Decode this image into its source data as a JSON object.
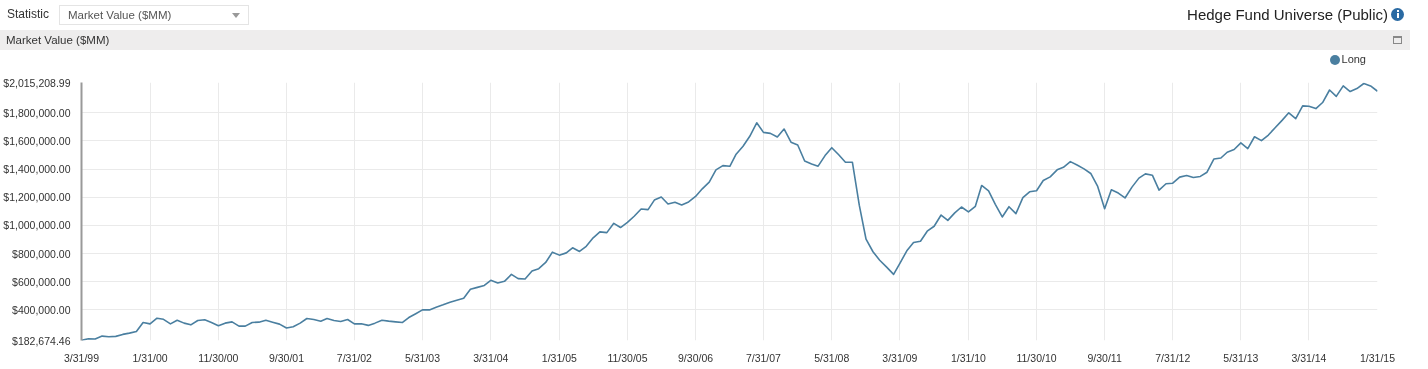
{
  "chart_data": {
    "type": "line",
    "title": "Hedge Fund Universe (Public)",
    "subtitle": "Market Value ($MM)",
    "annotations": [
      "Statistic",
      "Market Value ($MM)"
    ],
    "x": [
      "1999-03",
      "1999-04",
      "1999-05",
      "1999-06",
      "1999-07",
      "1999-08",
      "1999-09",
      "1999-10",
      "1999-11",
      "1999-12",
      "2000-01",
      "2000-02",
      "2000-03",
      "2000-04",
      "2000-05",
      "2000-06",
      "2000-07",
      "2000-08",
      "2000-09",
      "2000-10",
      "2000-11",
      "2000-12",
      "2001-01",
      "2001-02",
      "2001-03",
      "2001-04",
      "2001-05",
      "2001-06",
      "2001-07",
      "2001-08",
      "2001-09",
      "2001-10",
      "2001-11",
      "2001-12",
      "2002-01",
      "2002-02",
      "2002-03",
      "2002-04",
      "2002-05",
      "2002-06",
      "2002-07",
      "2002-08",
      "2002-09",
      "2002-10",
      "2002-11",
      "2002-12",
      "2003-01",
      "2003-02",
      "2003-03",
      "2003-04",
      "2003-05",
      "2003-06",
      "2003-07",
      "2003-08",
      "2003-09",
      "2003-10",
      "2003-11",
      "2003-12",
      "2004-01",
      "2004-02",
      "2004-03",
      "2004-04",
      "2004-05",
      "2004-06",
      "2004-07",
      "2004-08",
      "2004-09",
      "2004-10",
      "2004-11",
      "2004-12",
      "2005-01",
      "2005-02",
      "2005-03",
      "2005-04",
      "2005-05",
      "2005-06",
      "2005-07",
      "2005-08",
      "2005-09",
      "2005-10",
      "2005-11",
      "2005-12",
      "2006-01",
      "2006-02",
      "2006-03",
      "2006-04",
      "2006-05",
      "2006-06",
      "2006-07",
      "2006-08",
      "2006-09",
      "2006-10",
      "2006-11",
      "2006-12",
      "2007-01",
      "2007-02",
      "2007-03",
      "2007-04",
      "2007-05",
      "2007-06",
      "2007-07",
      "2007-08",
      "2007-09",
      "2007-10",
      "2007-11",
      "2007-12",
      "2008-01",
      "2008-02",
      "2008-03",
      "2008-04",
      "2008-05",
      "2008-06",
      "2008-07",
      "2008-08",
      "2008-09",
      "2008-10",
      "2008-11",
      "2008-12",
      "2009-01",
      "2009-02",
      "2009-03",
      "2009-04",
      "2009-05",
      "2009-06",
      "2009-07",
      "2009-08",
      "2009-09",
      "2009-10",
      "2009-11",
      "2009-12",
      "2010-01",
      "2010-02",
      "2010-03",
      "2010-04",
      "2010-05",
      "2010-06",
      "2010-07",
      "2010-08",
      "2010-09",
      "2010-10",
      "2010-11",
      "2010-12",
      "2011-01",
      "2011-02",
      "2011-03",
      "2011-04",
      "2011-05",
      "2011-06",
      "2011-07",
      "2011-08",
      "2011-09",
      "2011-10",
      "2011-11",
      "2011-12",
      "2012-01",
      "2012-02",
      "2012-03",
      "2012-04",
      "2012-05",
      "2012-06",
      "2012-07",
      "2012-08",
      "2012-09",
      "2012-10",
      "2012-11",
      "2012-12",
      "2013-01",
      "2013-02",
      "2013-03",
      "2013-04",
      "2013-05",
      "2013-06",
      "2013-07",
      "2013-08",
      "2013-09",
      "2013-10",
      "2013-11",
      "2013-12",
      "2014-01",
      "2014-02",
      "2014-03",
      "2014-04",
      "2014-05",
      "2014-06",
      "2014-07",
      "2014-08",
      "2014-09",
      "2014-10",
      "2014-11",
      "2014-12",
      "2015-01"
    ],
    "series": [
      {
        "name": "Long",
        "color": "#4a7fa0",
        "values": [
          184000,
          195000,
          193000,
          214000,
          209000,
          212000,
          226000,
          235000,
          247000,
          311000,
          301000,
          341000,
          333000,
          301000,
          327000,
          306000,
          294000,
          325000,
          330000,
          311000,
          287000,
          306000,
          315000,
          285000,
          285000,
          311000,
          313000,
          327000,
          313000,
          299000,
          271000,
          280000,
          306000,
          339000,
          332000,
          320000,
          339000,
          325000,
          318000,
          332000,
          301000,
          301000,
          290000,
          306000,
          327000,
          320000,
          315000,
          311000,
          346000,
          373000,
          400000,
          400000,
          419000,
          436000,
          455000,
          469000,
          483000,
          546000,
          560000,
          574000,
          610000,
          591000,
          603000,
          652000,
          622000,
          620000,
          676000,
          693000,
          737000,
          810000,
          789000,
          805000,
          841000,
          815000,
          852000,
          912000,
          954000,
          949000,
          1015000,
          985000,
          1022000,
          1065000,
          1117000,
          1112000,
          1180000,
          1202000,
          1152000,
          1164000,
          1145000,
          1167000,
          1206000,
          1260000,
          1308000,
          1395000,
          1425000,
          1420000,
          1506000,
          1562000,
          1633000,
          1729000,
          1661000,
          1654000,
          1628000,
          1685000,
          1591000,
          1571000,
          1458000,
          1437000,
          1421000,
          1496000,
          1552000,
          1502000,
          1449000,
          1449000,
          1142000,
          902000,
          813000,
          753000,
          704000,
          652000,
          730000,
          820000,
          879000,
          888000,
          959000,
          994000,
          1074000,
          1036000,
          1089000,
          1131000,
          1096000,
          1136000,
          1284000,
          1246000,
          1150000,
          1060000,
          1133000,
          1084000,
          1197000,
          1239000,
          1246000,
          1319000,
          1345000,
          1395000,
          1413000,
          1453000,
          1429000,
          1402000,
          1369000,
          1277000,
          1119000,
          1253000,
          1230000,
          1195000,
          1272000,
          1336000,
          1366000,
          1357000,
          1251000,
          1296000,
          1300000,
          1343000,
          1355000,
          1340000,
          1348000,
          1378000,
          1472000,
          1479000,
          1520000,
          1539000,
          1586000,
          1546000,
          1630000,
          1602000,
          1642000,
          1694000,
          1746000,
          1800000,
          1758000,
          1849000,
          1847000,
          1830000,
          1873000,
          1962000,
          1917000,
          1991000,
          1951000,
          1972000,
          2008000,
          1991000,
          1953000
        ]
      }
    ],
    "xlim": [
      "1999-03",
      "2015-01"
    ],
    "xticks": [
      {
        "value": "1999-03",
        "label": "3/31/99"
      },
      {
        "value": "2000-01",
        "label": "1/31/00"
      },
      {
        "value": "2000-11",
        "label": "11/30/00"
      },
      {
        "value": "2001-09",
        "label": "9/30/01"
      },
      {
        "value": "2002-07",
        "label": "7/31/02"
      },
      {
        "value": "2003-05",
        "label": "5/31/03"
      },
      {
        "value": "2004-03",
        "label": "3/31/04"
      },
      {
        "value": "2005-01",
        "label": "1/31/05"
      },
      {
        "value": "2005-11",
        "label": "11/30/05"
      },
      {
        "value": "2006-09",
        "label": "9/30/06"
      },
      {
        "value": "2007-07",
        "label": "7/31/07"
      },
      {
        "value": "2008-05",
        "label": "5/31/08"
      },
      {
        "value": "2009-03",
        "label": "3/31/09"
      },
      {
        "value": "2010-01",
        "label": "1/31/10"
      },
      {
        "value": "2010-11",
        "label": "11/30/10"
      },
      {
        "value": "2011-09",
        "label": "9/30/11"
      },
      {
        "value": "2012-07",
        "label": "7/31/12"
      },
      {
        "value": "2013-05",
        "label": "5/31/13"
      },
      {
        "value": "2014-03",
        "label": "3/31/14"
      },
      {
        "value": "2015-01",
        "label": "1/31/15"
      }
    ],
    "ylim": [
      182674.46,
      2015208.99
    ],
    "yticks": [
      {
        "value": 182674.46,
        "label": "$182,674.46"
      },
      {
        "value": 400000,
        "label": "$400,000.00"
      },
      {
        "value": 600000,
        "label": "$600,000.00"
      },
      {
        "value": 800000,
        "label": "$800,000.00"
      },
      {
        "value": 1000000,
        "label": "$1,000,000.00"
      },
      {
        "value": 1200000,
        "label": "$1,200,000.00"
      },
      {
        "value": 1400000,
        "label": "$1,400,000.00"
      },
      {
        "value": 1600000,
        "label": "$1,600,000.00"
      },
      {
        "value": 1800000,
        "label": "$1,800,000.00"
      },
      {
        "value": 2015208.99,
        "label": "$2,015,208.99"
      }
    ],
    "grid": true,
    "legend": "top right",
    "line_style": "solid"
  }
}
